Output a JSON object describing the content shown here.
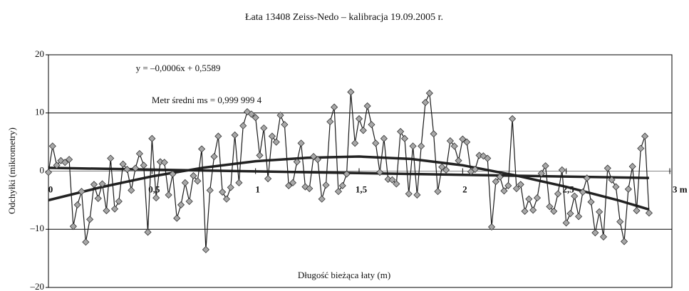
{
  "chart_data": {
    "type": "line",
    "title": "Łata 13408 Zeiss-Nedo – kalibracja 19.09.2005 r.",
    "x_label": "Długość bieżąca łaty (m)",
    "y_label": "Odchyłki (mikrometry)",
    "annotations": [
      "y = –0,0006x + 0,5589",
      "Metr średni ms = 0,999 999 4"
    ],
    "xlim": [
      0,
      3
    ],
    "xticks": [
      0,
      {
        "value": 0.5,
        "label": "0,5"
      },
      1,
      {
        "value": 1.5,
        "label": "1,5"
      },
      2,
      {
        "value": 2.5,
        "label": "2,5"
      },
      {
        "value": 3,
        "label": "3 m"
      }
    ],
    "ylim": [
      -20,
      20
    ],
    "yticks": [
      20,
      10,
      0,
      {
        "value": -10,
        "label": "–10"
      },
      {
        "value": -20,
        "label": "–20"
      }
    ],
    "grid": true,
    "x": [
      0,
      0.02,
      0.04,
      0.06,
      0.08,
      0.1,
      0.12,
      0.14,
      0.16,
      0.18,
      0.2,
      0.22,
      0.24,
      0.26,
      0.28,
      0.3,
      0.32,
      0.34,
      0.36,
      0.38,
      0.4,
      0.42,
      0.44,
      0.46,
      0.48,
      0.5,
      0.52,
      0.54,
      0.56,
      0.58,
      0.6,
      0.62,
      0.64,
      0.66,
      0.68,
      0.7,
      0.72,
      0.74,
      0.76,
      0.78,
      0.8,
      0.82,
      0.84,
      0.86,
      0.88,
      0.9,
      0.92,
      0.94,
      0.96,
      0.98,
      1,
      1.02,
      1.04,
      1.06,
      1.08,
      1.1,
      1.12,
      1.14,
      1.16,
      1.18,
      1.2,
      1.22,
      1.24,
      1.26,
      1.28,
      1.3,
      1.32,
      1.34,
      1.36,
      1.38,
      1.4,
      1.42,
      1.44,
      1.46,
      1.48,
      1.5,
      1.52,
      1.54,
      1.56,
      1.58,
      1.6,
      1.62,
      1.64,
      1.66,
      1.68,
      1.7,
      1.72,
      1.74,
      1.76,
      1.78,
      1.8,
      1.82,
      1.84,
      1.86,
      1.88,
      1.9,
      1.92,
      1.94,
      1.96,
      1.98,
      2,
      2.02,
      2.04,
      2.06,
      2.08,
      2.1,
      2.12,
      2.14,
      2.16,
      2.18,
      2.2,
      2.22,
      2.24,
      2.26,
      2.28,
      2.3,
      2.32,
      2.34,
      2.36,
      2.38,
      2.4,
      2.42,
      2.44,
      2.46,
      2.48,
      2.5,
      2.52,
      2.54,
      2.56,
      2.58,
      2.6,
      2.62,
      2.64,
      2.66,
      2.68,
      2.7,
      2.72,
      2.74,
      2.76,
      2.78,
      2.8,
      2.82,
      2.84,
      2.86,
      2.88,
      2.9
    ],
    "series": [
      {
        "color": "#a8a8a8",
        "line_color": "#1a1a1a",
        "marker": "diamond",
        "values": [
          -0.2,
          4.3,
          1.0,
          1.8,
          1.5,
          2.0,
          -9.5,
          -5.8,
          -3.5,
          -12.2,
          -8.3,
          -2.3,
          -4.7,
          -2.2,
          -6.8,
          2.2,
          -6.5,
          -5.2,
          1.2,
          0.3,
          -3.3,
          0.5,
          3.0,
          1.0,
          -10.5,
          5.6,
          -4.6,
          1.6,
          1.5,
          -4.1,
          -0.5,
          -8.1,
          -5.8,
          -2.0,
          -5.2,
          -0.8,
          -1.7,
          3.8,
          -13.5,
          -3.3,
          2.5,
          6.0,
          -3.6,
          -4.8,
          -2.8,
          6.2,
          -2.0,
          7.8,
          10.2,
          9.8,
          9.2,
          2.7,
          7.4,
          -1.3,
          6.0,
          5.0,
          9.6,
          8.0,
          -2.5,
          -2.0,
          1.6,
          4.8,
          -2.7,
          -3.0,
          2.5,
          2.0,
          -4.8,
          -2.4,
          8.5,
          11.0,
          -3.5,
          -2.5,
          -0.5,
          13.6,
          4.8,
          9.0,
          7.0,
          11.2,
          8.0,
          4.8,
          -0.2,
          5.6,
          -1.4,
          -1.5,
          -2.2,
          6.8,
          5.6,
          -3.9,
          4.3,
          -4.1,
          4.3,
          11.8,
          13.4,
          6.4,
          -3.5,
          0.7,
          0.2,
          5.2,
          4.3,
          1.8,
          5.5,
          5.0,
          -0.1,
          0.3,
          2.7,
          2.6,
          2.2,
          -9.6,
          -1.8,
          -1.0,
          -3.4,
          -2.5,
          9.0,
          -3.0,
          -2.3,
          -6.9,
          -4.8,
          -6.7,
          -4.6,
          -0.4,
          0.9,
          -6.1,
          -6.9,
          -3.9,
          0.2,
          -8.9,
          -7.3,
          -4.3,
          -7.8,
          -3.6,
          -1.2,
          -5.3,
          -10.6,
          -7.0,
          -11.3,
          0.5,
          -1.5,
          -2.7,
          -8.7,
          -12.1,
          -3.1,
          0.8,
          -6.8,
          3.9,
          6.0,
          -7.2
        ]
      },
      {
        "color": "#222222",
        "x": [
          0,
          2.9
        ],
        "values": [
          0.5589,
          -1.18
        ]
      },
      {
        "color": "#222222",
        "x": [
          0,
          0.25,
          0.5,
          0.75,
          1,
          1.25,
          1.5,
          1.75,
          2,
          2.25,
          2.5,
          2.75,
          2.9
        ],
        "values": [
          -5,
          -2.8,
          -0.9,
          0.6,
          1.7,
          2.3,
          2.5,
          2.1,
          1.0,
          -0.7,
          -2.7,
          -5.0,
          -6.6
        ]
      }
    ]
  }
}
